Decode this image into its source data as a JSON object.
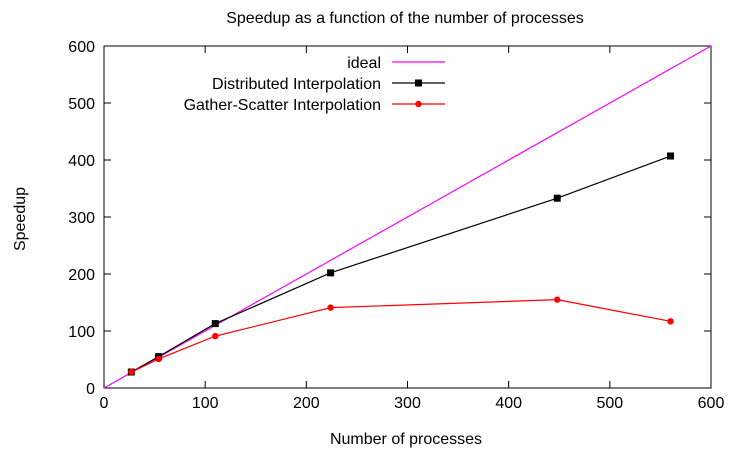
{
  "chart_data": {
    "type": "line",
    "title": "Speedup as a function of the number of processes",
    "xlabel": "Number of processes",
    "ylabel": "Speedup",
    "xlim": [
      0,
      600
    ],
    "ylim": [
      0,
      600
    ],
    "xticks": [
      0,
      100,
      200,
      300,
      400,
      500,
      600
    ],
    "yticks": [
      0,
      100,
      200,
      300,
      400,
      500,
      600
    ],
    "grid": false,
    "legend_position": "top-left",
    "series": [
      {
        "name": "ideal",
        "color": "#ff00ff",
        "marker": "none",
        "x": [
          0,
          600
        ],
        "y": [
          0,
          600
        ]
      },
      {
        "name": "Distributed Interpolation",
        "color": "#000000",
        "marker": "square",
        "x": [
          27,
          54,
          110,
          224,
          448,
          560
        ],
        "y": [
          28,
          55,
          113,
          202,
          333,
          407
        ]
      },
      {
        "name": "Gather-Scatter Interpolation",
        "color": "#ff0000",
        "marker": "circle",
        "x": [
          27,
          54,
          110,
          224,
          448,
          560
        ],
        "y": [
          28,
          51,
          91,
          141,
          155,
          117
        ]
      }
    ]
  }
}
